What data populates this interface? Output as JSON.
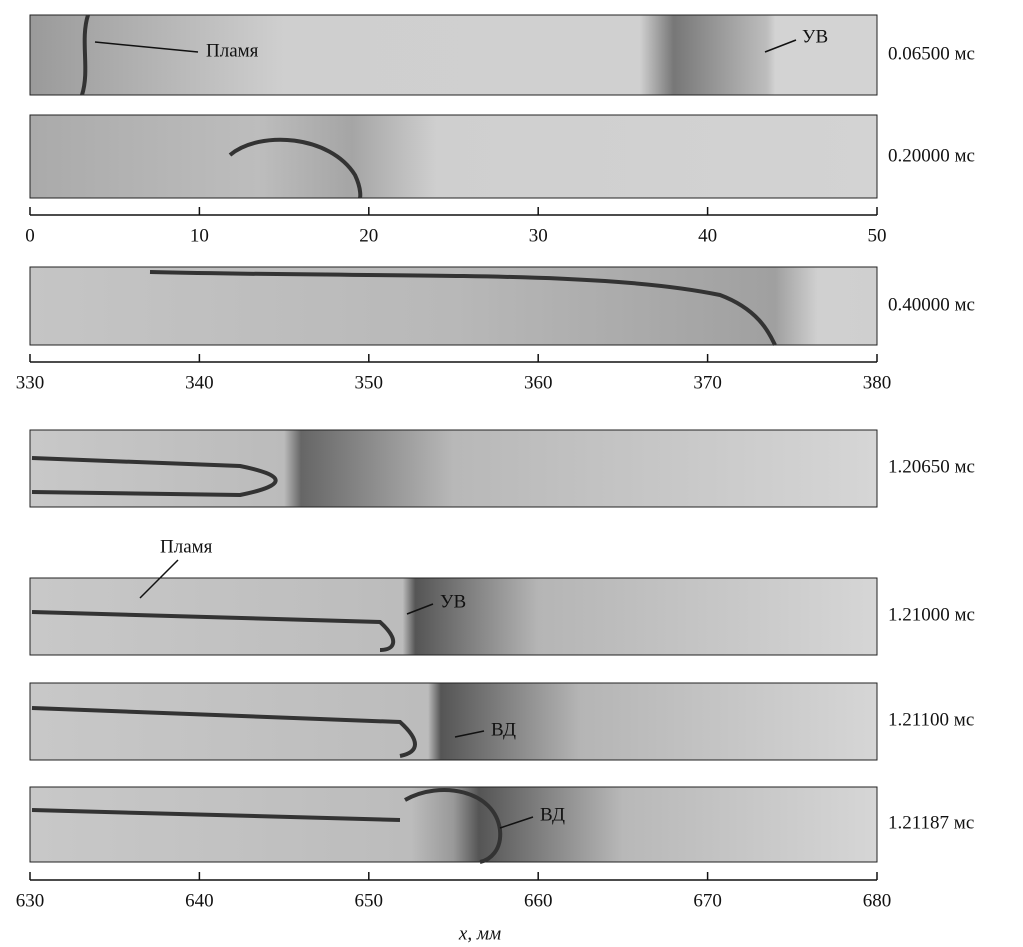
{
  "panels": [
    {
      "time": "0.06500 мс"
    },
    {
      "time": "0.20000 мс"
    },
    {
      "time": "0.40000 мс"
    },
    {
      "time": "1.20650 мс"
    },
    {
      "time": "1.21000 мс"
    },
    {
      "time": "1.21100 мс"
    },
    {
      "time": "1.21187 мс"
    }
  ],
  "axes": [
    {
      "ticks": [
        0,
        10,
        20,
        30,
        40,
        50
      ]
    },
    {
      "ticks": [
        330,
        340,
        350,
        360,
        370,
        380
      ]
    },
    {
      "ticks": [
        630,
        640,
        650,
        660,
        670,
        680
      ]
    }
  ],
  "x_label": "x, мм",
  "annotations": [
    "Пламя",
    "УВ",
    "Пламя",
    "УВ",
    "ВД",
    "ВД"
  ]
}
